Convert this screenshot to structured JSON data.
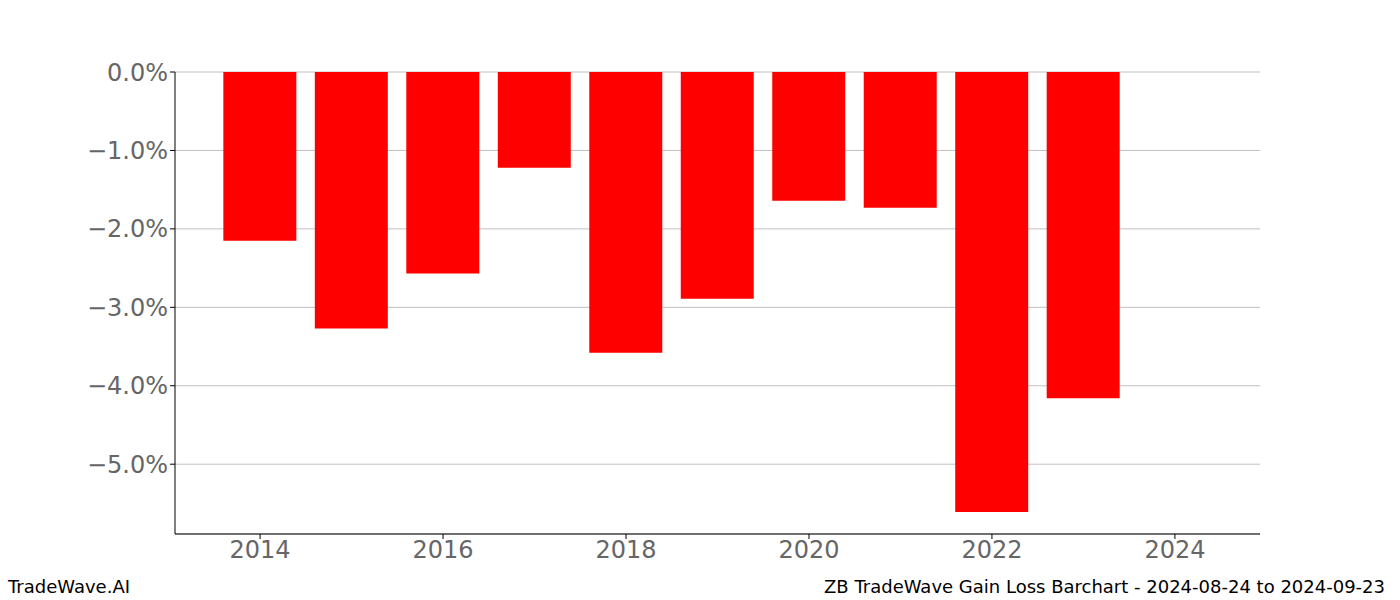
{
  "chart_data": {
    "type": "bar",
    "title": "ZB TradeWave Gain Loss Barchart - 2024-08-24 to 2024-09-23",
    "annotation": "TradeWave.AI",
    "x": [
      2014,
      2015,
      2016,
      2017,
      2018,
      2019,
      2020,
      2021,
      2022,
      2023
    ],
    "values": [
      -2.15,
      -3.27,
      -2.57,
      -1.22,
      -3.58,
      -2.89,
      -1.64,
      -1.73,
      -5.61,
      -4.16
    ],
    "color": "#ff0000",
    "xlim": [
      2013.07,
      2024.93
    ],
    "xticks": [
      2014,
      2016,
      2018,
      2020,
      2022,
      2024
    ],
    "ylim": [
      -5.89,
      0
    ],
    "yticks": [
      {
        "value": 0,
        "label": "0.0%"
      },
      {
        "value": -1,
        "label": "−1.0%"
      },
      {
        "value": -2,
        "label": "−2.0%"
      },
      {
        "value": -3,
        "label": "−3.0%"
      },
      {
        "value": -4,
        "label": "−4.0%"
      },
      {
        "value": -5,
        "label": "−5.0%"
      }
    ],
    "grid": true
  }
}
